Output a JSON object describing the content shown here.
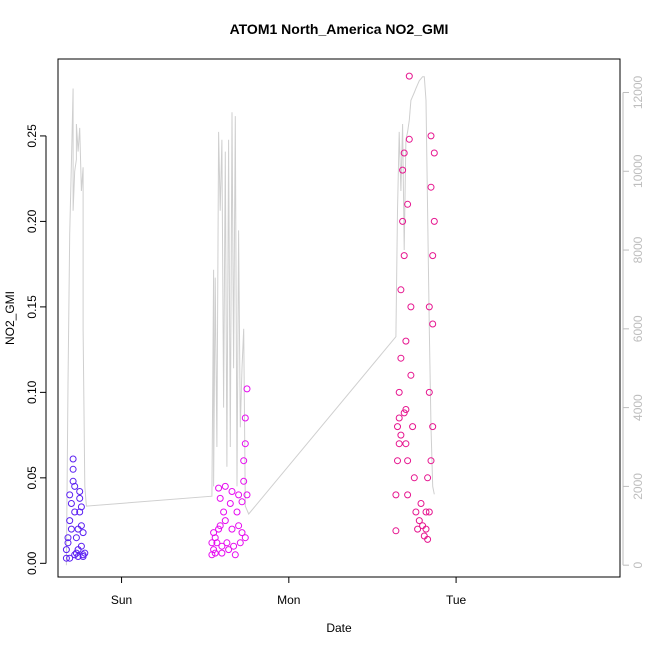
{
  "chart_data": {
    "type": "scatter",
    "title": "ATOM1 North_America NO2_GMI",
    "xlabel": "Date",
    "ylabel": "NO2_GMI",
    "x_unit": "days",
    "xlim": [
      -0.38,
      2.98
    ],
    "ylim": [
      -0.008,
      0.295
    ],
    "x_ticks": [
      {
        "value": 0,
        "label": "Sun"
      },
      {
        "value": 1,
        "label": "Mon"
      },
      {
        "value": 2,
        "label": "Tue"
      }
    ],
    "y_ticks": [
      0.0,
      0.05,
      0.1,
      0.15,
      0.2,
      0.25
    ],
    "y_tick_labels": [
      "0.00",
      "0.05",
      "0.10",
      "0.15",
      "0.20",
      "0.25"
    ],
    "y2_label": "",
    "y2_lim": [
      -300,
      12850
    ],
    "y2_ticks": [
      0,
      2000,
      4000,
      6000,
      8000,
      10000,
      12000
    ],
    "grid": false,
    "legend": "none",
    "colors": {
      "series1": "#5a1ff2",
      "series2": "#e60cf0",
      "series3": "#e6158f",
      "altitude": "#cfcfcf",
      "axis": "#000000",
      "axis2": "#bdbdbd"
    },
    "series": [
      {
        "points": [
          [
            -0.33,
            0.003
          ],
          [
            -0.33,
            0.008
          ],
          [
            -0.32,
            0.015
          ],
          [
            -0.32,
            0.012
          ],
          [
            -0.31,
            0.025
          ],
          [
            -0.31,
            0.04
          ],
          [
            -0.3,
            0.035
          ],
          [
            -0.3,
            0.02
          ],
          [
            -0.29,
            0.061
          ],
          [
            -0.29,
            0.055
          ],
          [
            -0.29,
            0.048
          ],
          [
            -0.28,
            0.045
          ],
          [
            -0.28,
            0.03
          ],
          [
            -0.27,
            0.015
          ],
          [
            -0.27,
            0.006
          ],
          [
            -0.26,
            0.004
          ],
          [
            -0.26,
            0.02
          ],
          [
            -0.25,
            0.038
          ],
          [
            -0.25,
            0.042
          ],
          [
            -0.25,
            0.03
          ],
          [
            -0.24,
            0.022
          ],
          [
            -0.24,
            0.01
          ],
          [
            -0.23,
            0.005
          ],
          [
            -0.23,
            0.004
          ],
          [
            -0.31,
            0.003
          ],
          [
            -0.28,
            0.005
          ],
          [
            -0.26,
            0.008
          ],
          [
            -0.24,
            0.033
          ],
          [
            -0.23,
            0.018
          ],
          [
            -0.22,
            0.006
          ]
        ]
      },
      {
        "points": [
          [
            0.54,
            0.005
          ],
          [
            0.54,
            0.012
          ],
          [
            0.55,
            0.018
          ],
          [
            0.55,
            0.008
          ],
          [
            0.56,
            0.015
          ],
          [
            0.56,
            0.006
          ],
          [
            0.57,
            0.012
          ],
          [
            0.58,
            0.02
          ],
          [
            0.58,
            0.044
          ],
          [
            0.59,
            0.038
          ],
          [
            0.59,
            0.022
          ],
          [
            0.6,
            0.01
          ],
          [
            0.6,
            0.006
          ],
          [
            0.61,
            0.03
          ],
          [
            0.62,
            0.045
          ],
          [
            0.62,
            0.025
          ],
          [
            0.63,
            0.012
          ],
          [
            0.64,
            0.008
          ],
          [
            0.65,
            0.035
          ],
          [
            0.66,
            0.042
          ],
          [
            0.66,
            0.02
          ],
          [
            0.67,
            0.01
          ],
          [
            0.68,
            0.005
          ],
          [
            0.69,
            0.03
          ],
          [
            0.7,
            0.04
          ],
          [
            0.7,
            0.022
          ],
          [
            0.71,
            0.012
          ],
          [
            0.72,
            0.036
          ],
          [
            0.72,
            0.018
          ],
          [
            0.73,
            0.048
          ],
          [
            0.73,
            0.06
          ],
          [
            0.74,
            0.07
          ],
          [
            0.74,
            0.085
          ],
          [
            0.75,
            0.102
          ],
          [
            0.75,
            0.04
          ],
          [
            0.74,
            0.015
          ]
        ]
      },
      {
        "points": [
          [
            1.64,
            0.019
          ],
          [
            1.64,
            0.04
          ],
          [
            1.65,
            0.06
          ],
          [
            1.65,
            0.08
          ],
          [
            1.66,
            0.1
          ],
          [
            1.66,
            0.07
          ],
          [
            1.67,
            0.12
          ],
          [
            1.67,
            0.16
          ],
          [
            1.68,
            0.2
          ],
          [
            1.68,
            0.23
          ],
          [
            1.69,
            0.24
          ],
          [
            1.69,
            0.18
          ],
          [
            1.7,
            0.13
          ],
          [
            1.7,
            0.09
          ],
          [
            1.71,
            0.06
          ],
          [
            1.71,
            0.21
          ],
          [
            1.72,
            0.248
          ],
          [
            1.72,
            0.285
          ],
          [
            1.73,
            0.15
          ],
          [
            1.73,
            0.11
          ],
          [
            1.74,
            0.08
          ],
          [
            1.75,
            0.05
          ],
          [
            1.76,
            0.03
          ],
          [
            1.77,
            0.02
          ],
          [
            1.78,
            0.025
          ],
          [
            1.79,
            0.035
          ],
          [
            1.8,
            0.022
          ],
          [
            1.81,
            0.016
          ],
          [
            1.82,
            0.03
          ],
          [
            1.83,
            0.05
          ],
          [
            1.84,
            0.1
          ],
          [
            1.84,
            0.15
          ],
          [
            1.85,
            0.25
          ],
          [
            1.85,
            0.22
          ],
          [
            1.86,
            0.18
          ],
          [
            1.86,
            0.14
          ],
          [
            1.87,
            0.2
          ],
          [
            1.87,
            0.24
          ],
          [
            1.86,
            0.08
          ],
          [
            1.85,
            0.06
          ],
          [
            1.84,
            0.03
          ],
          [
            1.83,
            0.014
          ],
          [
            1.82,
            0.02
          ],
          [
            1.66,
            0.085
          ],
          [
            1.67,
            0.075
          ],
          [
            1.69,
            0.088
          ],
          [
            1.7,
            0.07
          ],
          [
            1.71,
            0.04
          ]
        ]
      }
    ],
    "altitude_line": [
      [
        -0.33,
        0
      ],
      [
        -0.32,
        4600
      ],
      [
        -0.31,
        8400
      ],
      [
        -0.3,
        10200
      ],
      [
        -0.29,
        12100
      ],
      [
        -0.29,
        9000
      ],
      [
        -0.28,
        10000
      ],
      [
        -0.27,
        10300
      ],
      [
        -0.27,
        11200
      ],
      [
        -0.26,
        10500
      ],
      [
        -0.25,
        11100
      ],
      [
        -0.24,
        9500
      ],
      [
        -0.23,
        10100
      ],
      [
        -0.23,
        6000
      ],
      [
        -0.22,
        2000
      ],
      [
        -0.21,
        1500
      ],
      [
        0.54,
        1750
      ],
      [
        0.55,
        7500
      ],
      [
        0.55,
        2000
      ],
      [
        0.56,
        7300
      ],
      [
        0.57,
        3000
      ],
      [
        0.58,
        11000
      ],
      [
        0.59,
        9000
      ],
      [
        0.6,
        10800
      ],
      [
        0.61,
        4000
      ],
      [
        0.62,
        10500
      ],
      [
        0.63,
        2500
      ],
      [
        0.64,
        10800
      ],
      [
        0.65,
        3000
      ],
      [
        0.66,
        11500
      ],
      [
        0.67,
        5000
      ],
      [
        0.68,
        11400
      ],
      [
        0.69,
        2000
      ],
      [
        0.7,
        8500
      ],
      [
        0.71,
        3500
      ],
      [
        0.72,
        5000
      ],
      [
        0.73,
        6000
      ],
      [
        0.74,
        1500
      ],
      [
        0.76,
        1300
      ],
      [
        1.64,
        5800
      ],
      [
        1.65,
        9000
      ],
      [
        1.66,
        11000
      ],
      [
        1.67,
        9500
      ],
      [
        1.68,
        11200
      ],
      [
        1.69,
        8000
      ],
      [
        1.7,
        10800
      ],
      [
        1.71,
        11000
      ],
      [
        1.72,
        11300
      ],
      [
        1.73,
        11800
      ],
      [
        1.74,
        11900
      ],
      [
        1.75,
        12000
      ],
      [
        1.76,
        12100
      ],
      [
        1.77,
        12200
      ],
      [
        1.78,
        12300
      ],
      [
        1.79,
        12350
      ],
      [
        1.8,
        12400
      ],
      [
        1.81,
        12400
      ],
      [
        1.82,
        11800
      ],
      [
        1.83,
        9000
      ],
      [
        1.84,
        6000
      ],
      [
        1.85,
        3500
      ],
      [
        1.86,
        2000
      ],
      [
        1.87,
        1800
      ]
    ]
  }
}
